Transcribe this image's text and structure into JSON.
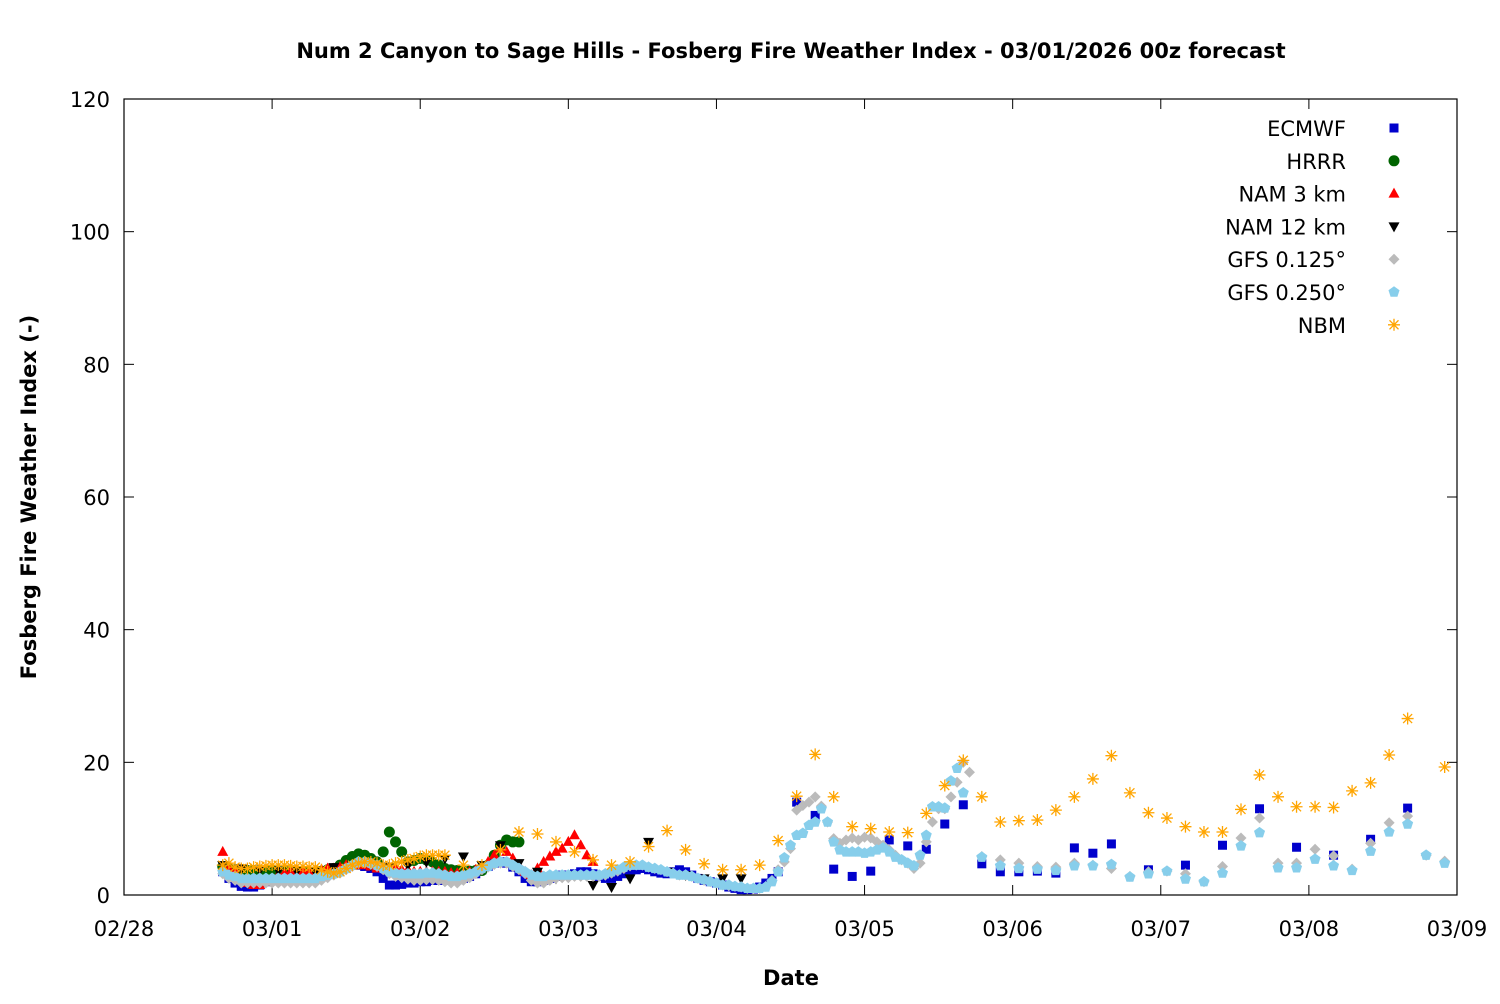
{
  "chart_data": {
    "type": "scatter",
    "title": "Num 2 Canyon to Sage Hills - Fosberg Fire Weather Index - 03/01/2026 00z forecast",
    "xlabel": "Date",
    "ylabel": "Fosberg Fire Weather Index (-)",
    "year": 2026,
    "xlim": [
      "02/28 00:00",
      "03/09 00:00"
    ],
    "ylim": [
      0,
      120
    ],
    "xticks": [
      "02/28",
      "03/01",
      "03/02",
      "03/03",
      "03/04",
      "03/05",
      "03/06",
      "03/07",
      "03/08",
      "03/09"
    ],
    "yticks": [
      0,
      20,
      40,
      60,
      80,
      100,
      120
    ],
    "grid": false,
    "legend_position": "top-right",
    "series": [
      {
        "name": "ECMWF",
        "marker": "square",
        "color": "#0000cc",
        "segments": [
          {
            "start": "02/28 16:00",
            "step_hours": 1,
            "values": [
              3.5,
              2.5,
              1.8,
              1.3,
              1.2,
              1.2,
              1.5,
              2,
              2.5,
              2.8,
              3,
              3,
              3,
              3,
              3,
              3,
              3.2,
              3.5,
              3.8,
              4.0,
              4.2,
              4.5,
              4.5,
              4.3,
              4.0,
              3.5,
              2.5,
              1.5,
              1.5,
              1.6,
              1.8,
              1.8,
              2,
              2,
              2.2,
              2.2,
              2.2,
              2.3,
              2.3,
              2.5,
              2.8,
              3.2,
              3.8,
              4.3,
              4.8,
              5,
              4.8,
              4.2,
              3.5,
              2.5,
              2,
              2,
              2.2,
              2.5,
              2.8,
              3,
              3,
              3.2,
              3.5,
              3.5,
              3.2,
              2.8,
              2.5,
              2.5,
              2.8,
              3.2,
              3.5,
              3.8,
              4.0,
              3.8,
              3.5,
              3.3,
              3.2,
              3.5,
              3.8,
              3.5,
              3.0,
              2.5,
              2.2,
              2.0,
              1.8,
              1.5,
              1.2,
              1.0,
              0.8,
              0.8,
              0.9,
              1.2,
              1.8,
              2.5,
              3.5
            ]
          },
          {
            "start": "03/04 13:00",
            "step_hours": 3,
            "values": [
              14,
              12,
              3.9,
              2.8,
              3.6,
              8.3,
              7.4,
              6.9,
              10.7,
              13.6,
              4.7,
              3.5,
              3.5,
              3.6,
              3.3,
              7.1,
              6.3,
              7.7
            ]
          },
          {
            "start": "03/06 22:00",
            "step_hours": 6,
            "values": [
              3.8,
              4.5,
              7.5,
              13,
              7.2,
              6.0,
              8.4,
              13.1
            ]
          }
        ]
      },
      {
        "name": "HRRR",
        "marker": "circle",
        "color": "#006400",
        "segments": [
          {
            "start": "02/28 16:00",
            "step_hours": 1,
            "values": [
              4.3,
              4,
              3.8,
              3.8,
              3.7,
              3.7,
              3.7,
              3.7,
              3.7,
              3.6,
              3.6,
              3.5,
              3.5,
              3.5,
              3.5,
              3.5,
              3.6,
              3.8,
              4.0,
              4.5,
              5.2,
              5.8,
              6.2,
              6.0,
              5.5,
              5.0,
              6.5,
              9.5,
              8.0,
              6.5,
              5.0,
              5.2,
              5.5,
              5.3,
              5.0,
              4.5,
              4.0,
              3.8,
              3.7,
              3.6,
              3.6,
              3.7,
              3.7,
              4.5,
              6.0,
              7.5,
              8.3,
              8.0,
              8.0
            ]
          }
        ]
      },
      {
        "name": "NAM 3 km",
        "marker": "triangle-up",
        "color": "#ff0000",
        "segments": [
          {
            "start": "02/28 16:00",
            "step_hours": 1,
            "values": [
              6.5,
              4,
              3.5,
              2.5,
              1.8,
              1.5,
              1.5,
              2,
              2.5,
              3,
              3.3,
              3.5,
              3.5,
              3.5,
              3.5,
              3.5,
              3.8,
              4,
              4,
              4.2,
              4.5,
              4.5,
              4.5,
              4.5,
              4.3,
              4,
              4,
              4,
              4,
              3.8,
              3.8,
              3.5,
              3.5,
              3.5,
              3.5,
              3.5,
              3.5,
              3.3,
              3.3,
              3.3,
              3.5,
              3.8,
              4.2,
              5,
              6,
              7,
              6.5,
              5.5,
              4.5,
              3.5,
              3,
              4,
              5,
              5.8,
              6.5,
              7,
              8,
              9,
              7.5,
              6,
              5
            ]
          }
        ]
      },
      {
        "name": "NAM 12 km",
        "marker": "triangle-down",
        "color": "#000000",
        "segments": [
          {
            "start": "02/28 16:00",
            "step_hours": 3,
            "values": [
              4.5,
              4,
              3.8,
              3.7,
              3.6,
              3.5,
              4.2,
              4.5,
              4.5,
              4.3,
              4.5,
              5,
              5.5,
              5.8,
              4.5,
              7.5,
              4.8,
              3.5,
              2.5,
              3,
              1.5,
              1.2,
              2.5,
              8,
              3.5,
              3,
              2.5,
              2.5,
              2.5
            ]
          }
        ]
      },
      {
        "name": "GFS 0.125°",
        "marker": "diamond",
        "color": "#bbbbbb",
        "segments": [
          {
            "start": "02/28 16:00",
            "step_hours": 1,
            "values": [
              3.2,
              2.5,
              2.2,
              1.8,
              1.8,
              1.8,
              1.8,
              1.8,
              1.8,
              1.8,
              1.8,
              1.8,
              1.8,
              1.8,
              1.8,
              1.8,
              2.2,
              2.6,
              3,
              3.3,
              3.8,
              4.3,
              4.8,
              4.8,
              4.6,
              4.3,
              3.8,
              3.2,
              2.8,
              2.6,
              2.4,
              2.2,
              2.2,
              2.3,
              2.3,
              2.2,
              2.0,
              1.8,
              1.8,
              2.2,
              2.6,
              3.2,
              3.8,
              4.2,
              4.6,
              4.8,
              4.8,
              4.3,
              3.8,
              3.2,
              2.2,
              1.8,
              1.8,
              2.2,
              2.5,
              2.6,
              2.6,
              2.8,
              2.8,
              2.8,
              2.8,
              2.8,
              3.0,
              3.3,
              3.6,
              4.0,
              4.4,
              4.5,
              4.5,
              4.2,
              4.0,
              3.8,
              3.5,
              3.3,
              3.0,
              3.0,
              2.8,
              2.5,
              2.2,
              2.0,
              1.8,
              1.5,
              1.4,
              1.3,
              1.2,
              1.0,
              1.0,
              1.0,
              1.3,
              2.2,
              3.8,
              5,
              7,
              12.8,
              13.5,
              14,
              14.8,
              13.4,
              11,
              8.5,
              7.8,
              8.3,
              8.6,
              8.3,
              8.7,
              8.6,
              8,
              7.5,
              6.8,
              6,
              5.3,
              4.8,
              4,
              4.8,
              8,
              11,
              13,
              13,
              14.8,
              17,
              20,
              18.5
            ]
          },
          {
            "start": "03/05 19:00",
            "step_hours": 3,
            "values": [
              5.8,
              5.3,
              4.8,
              4.3,
              4.2,
              4.8,
              4.5,
              4,
              2.8,
              3.5,
              3.6,
              3.2,
              2,
              4.3,
              8.6,
              11.6,
              4.8,
              4.8,
              6.9,
              5.9,
              3.9,
              7.8,
              10.9,
              11.9,
              6,
              5.1
            ]
          }
        ]
      },
      {
        "name": "GFS 0.250°",
        "marker": "pentagon",
        "color": "#87ceeb",
        "segments": [
          {
            "start": "02/28 16:00",
            "step_hours": 1,
            "values": [
              3.5,
              3,
              2.8,
              2.5,
              2.5,
              2.5,
              2.5,
              2.5,
              2.5,
              2.5,
              2.5,
              2.5,
              2.5,
              2.5,
              2.5,
              2.5,
              2.8,
              3,
              3.2,
              3.5,
              4,
              4.5,
              5,
              5,
              4.8,
              4.5,
              4,
              3.5,
              3.3,
              3.2,
              3.2,
              3.2,
              3.2,
              3.3,
              3.3,
              3.2,
              3,
              2.8,
              2.8,
              3,
              3.2,
              3.5,
              4,
              4.3,
              4.8,
              5,
              5,
              4.5,
              4,
              3.5,
              3,
              2.8,
              2.8,
              3,
              3,
              3,
              3,
              3,
              3,
              3,
              3,
              3,
              3.2,
              3.5,
              3.8,
              4.2,
              4.5,
              4.5,
              4.5,
              4.2,
              4,
              3.8,
              3.5,
              3.2,
              3,
              3,
              2.8,
              2.5,
              2.3,
              2,
              1.8,
              1.5,
              1.5,
              1.3,
              1.2,
              1,
              1,
              1,
              1.2,
              2,
              3.5,
              5.6,
              7.5,
              9,
              9.3,
              10.5,
              11,
              13,
              11,
              8,
              6.8,
              6.5,
              6.5,
              6.5,
              6.3,
              6.5,
              6.8,
              7.1,
              6.5,
              5.7,
              5.3,
              4.8,
              4.4,
              6,
              9,
              13.3,
              13.3,
              13.1,
              17.2,
              19.1,
              15.4
            ]
          },
          {
            "start": "03/05 19:00",
            "step_hours": 3,
            "values": [
              5.7,
              4.4,
              4,
              3.9,
              3.7,
              4.4,
              4.4,
              4.6,
              2.7,
              3.2,
              3.6,
              2.4,
              2,
              3.3,
              7.4,
              9.4,
              4.1,
              4.1,
              5.4,
              4.4,
              3.7,
              6.6,
              9.5,
              10.7,
              6,
              4.8
            ]
          }
        ]
      },
      {
        "name": "NBM",
        "marker": "asterisk",
        "color": "#ffa500",
        "segments": [
          {
            "start": "02/28 16:00",
            "step_hours": 1,
            "values": [
              4.5,
              4.8,
              4.2,
              4,
              4,
              4.2,
              4.3,
              4.4,
              4.5,
              4.5,
              4.5,
              4.4,
              4.3,
              4.3,
              4.2,
              4.2,
              3.8,
              3.5,
              3.3,
              3.5,
              4,
              4.5,
              4.8,
              5,
              5,
              4.8,
              4.5,
              4.5,
              4.8,
              5,
              5.3,
              5.5,
              5.8,
              6,
              6,
              6,
              6
            ]
          },
          {
            "start": "03/02 07:00",
            "step_hours": 3,
            "values": [
              4.5,
              4.5,
              6.8,
              9.5,
              9.2,
              8,
              6.5,
              5.3,
              4.5,
              5,
              7.3,
              9.7,
              6.8,
              4.7,
              3.8,
              3.8,
              4.5,
              8.2,
              14.9,
              21.2,
              14.8,
              10.3,
              10,
              9.5,
              9.4,
              12.3,
              16.5,
              20.3,
              14.8,
              11,
              11.2,
              11.3,
              12.8,
              14.8,
              17.5,
              21,
              15.4,
              12.4,
              11.6,
              10.3,
              9.5,
              9.5,
              12.9,
              18.1,
              14.8,
              13.3,
              13.3,
              13.2,
              15.7,
              16.9,
              21.1,
              26.6,
              null,
              19.3
            ]
          }
        ]
      }
    ]
  }
}
